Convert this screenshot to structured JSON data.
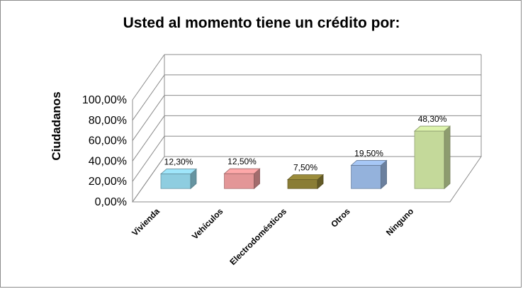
{
  "chart_data": {
    "type": "bar",
    "title": "Usted al momento tiene un crédito por:",
    "ylabel": "Ciudadanos",
    "xlabel": "",
    "ylim": [
      0,
      100
    ],
    "yticks": [
      "0,00%",
      "20,00%",
      "40,00%",
      "60,00%",
      "80,00%",
      "100,00%"
    ],
    "ytick_values": [
      0,
      20,
      40,
      60,
      80,
      100
    ],
    "categories": [
      "Vivienda",
      "Vehículos",
      "Electrodomésticos",
      "Otros",
      "Ninguno"
    ],
    "values": [
      12.3,
      12.5,
      7.5,
      19.5,
      48.3
    ],
    "data_labels": [
      "12,30%",
      "12,50%",
      "7,50%",
      "19,50%",
      "48,30%"
    ],
    "colors": [
      "#8ecde0",
      "#e39697",
      "#8a7d35",
      "#94b2dc",
      "#c4d99a"
    ],
    "grid": true,
    "style": "3d-column"
  }
}
